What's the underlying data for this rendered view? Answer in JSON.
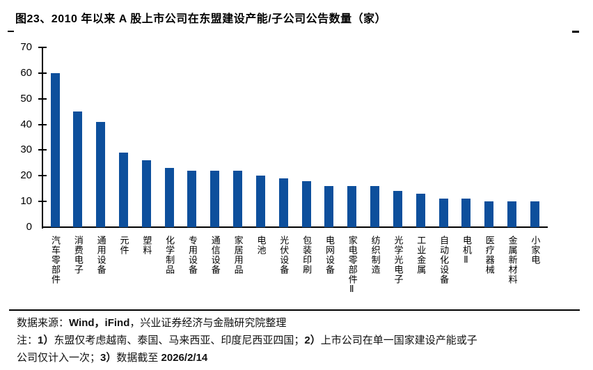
{
  "page": {
    "title": "图23、2010 年以来 A 股上市公司在东盟建设产能/子公司公告数量（家）"
  },
  "chart_data": {
    "type": "bar",
    "title": "2010 年以来 A 股上市公司在东盟建设产能/子公司公告数量（家）",
    "categories": [
      "汽车零部件",
      "消费电子",
      "通用设备",
      "元件",
      "塑料",
      "化学制品",
      "专用设备",
      "通信设备",
      "家居用品",
      "电池",
      "光伏设备",
      "包装印刷",
      "电网设备",
      "家电零部件Ⅱ",
      "纺织制造",
      "光学光电子",
      "工业金属",
      "自动化设备",
      "电机Ⅱ",
      "医疗器械",
      "金属新材料",
      "小家电"
    ],
    "values": [
      60,
      45,
      41,
      29,
      26,
      23,
      22,
      22,
      22,
      20,
      19,
      18,
      16,
      16,
      16,
      14,
      13,
      11,
      11,
      10,
      10,
      10
    ],
    "xlabel": "",
    "ylabel": "",
    "ylim": [
      0,
      70
    ],
    "yticks": [
      0,
      10,
      20,
      30,
      40,
      50,
      60,
      70
    ],
    "bar_color": "#0d4f9c",
    "axis_color": "#000000",
    "grid": false,
    "legend_position": "none"
  },
  "footer": {
    "source_prefix": "数据来源：",
    "source_latin": "Wind，iFind",
    "source_suffix": "，兴业证券经济与金融研究院整理",
    "note1_prefix": "注：",
    "note1_num1": "1）",
    "note1_text1": "东盟仅考虑越南、泰国、马来西亚、印度尼西亚四国；",
    "note1_num2": "2）",
    "note1_text2": "上市公司在单一国家建设产能或子",
    "note2_text1": "公司仅计入一次；",
    "note2_num": "3）",
    "note2_text2": "数据截至 ",
    "note2_date": "2026/2/14"
  }
}
